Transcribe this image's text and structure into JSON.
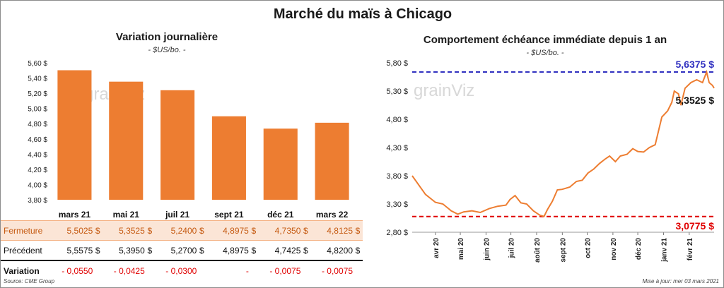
{
  "main_title": "Marché du maïs à Chicago",
  "source": "Source: CME Group",
  "updated": "Mise à jour: mer 03 mars 2021",
  "left_chart": {
    "title": "Variation  journalière",
    "subtitle": "- $US/bo. -",
    "watermark": "grainViz"
  },
  "right_chart": {
    "title": "Comportement  échéance immédiate depuis 1 an",
    "subtitle": "- $US/bo. -",
    "watermark": "grainViz",
    "annotations": {
      "max_label": "5,6375 $",
      "min_label": "3,0775 $",
      "last_label": "5,3525 $"
    }
  },
  "table": {
    "rows": [
      {
        "label": "Fermeture",
        "cells": [
          {
            "value": "5,5025",
            "cur": "$"
          },
          {
            "value": "5,3525",
            "cur": "$"
          },
          {
            "value": "5,2400",
            "cur": "$"
          },
          {
            "value": "4,8975",
            "cur": "$"
          },
          {
            "value": "4,7350",
            "cur": "$"
          },
          {
            "value": "4,8125",
            "cur": "$"
          }
        ]
      },
      {
        "label": "Précédent",
        "cells": [
          {
            "value": "5,5575",
            "cur": "$"
          },
          {
            "value": "5,3950",
            "cur": "$"
          },
          {
            "value": "5,2700",
            "cur": "$"
          },
          {
            "value": "4,8975",
            "cur": "$"
          },
          {
            "value": "4,7425",
            "cur": "$"
          },
          {
            "value": "4,8200",
            "cur": "$"
          }
        ]
      },
      {
        "label": "Variation",
        "cells": [
          {
            "value": "- 0,0550",
            "cur": ""
          },
          {
            "value": "- 0,0425",
            "cur": ""
          },
          {
            "value": "- 0,0300",
            "cur": ""
          },
          {
            "value": "-",
            "cur": ""
          },
          {
            "value": "- 0,0075",
            "cur": ""
          },
          {
            "value": "- 0,0075",
            "cur": ""
          }
        ]
      }
    ]
  },
  "chart_data": [
    {
      "type": "bar",
      "title": "Variation  journalière",
      "subtitle": "- $US/bo. -",
      "categories": [
        "mars 21",
        "mai 21",
        "juil 21",
        "sept 21",
        "déc 21",
        "mars 22"
      ],
      "values": [
        5.5025,
        5.3525,
        5.24,
        4.8975,
        4.735,
        4.8125
      ],
      "ylim": [
        3.8,
        5.6
      ],
      "yticks": [
        "3,80 $",
        "4,00 $",
        "4,20 $",
        "4,40 $",
        "4,60 $",
        "4,80 $",
        "5,00 $",
        "5,20 $",
        "5,40 $",
        "5,60 $"
      ],
      "color": "#ed7d31",
      "grid": false
    },
    {
      "type": "line",
      "title": "Comportement  échéance immédiate depuis 1 an",
      "subtitle": "- $US/bo. -",
      "color": "#ed7d31",
      "ylim": [
        2.8,
        5.8
      ],
      "yticks": [
        "2,80 $",
        "3,30 $",
        "3,80 $",
        "4,30 $",
        "4,80 $",
        "5,30 $",
        "5,80 $"
      ],
      "xticks": [
        "avr 20",
        "mai 20",
        "juin 20",
        "juil 20",
        "août 20",
        "sept 20",
        "oct 20",
        "nov 20",
        "déc 20",
        "janv 21",
        "févr 21"
      ],
      "x_start": "2020-03-04",
      "x_end": "2021-03-03",
      "max_line": 5.6375,
      "min_line": 3.0775,
      "last_value": 5.3525,
      "max_line_color": "#3030c0",
      "min_line_color": "#e00000",
      "points": [
        [
          "2020-03-04",
          3.8
        ],
        [
          "2020-03-20",
          3.47
        ],
        [
          "2020-04-01",
          3.33
        ],
        [
          "2020-04-10",
          3.3
        ],
        [
          "2020-04-20",
          3.18
        ],
        [
          "2020-04-28",
          3.12
        ],
        [
          "2020-05-05",
          3.16
        ],
        [
          "2020-05-15",
          3.18
        ],
        [
          "2020-05-25",
          3.15
        ],
        [
          "2020-06-05",
          3.22
        ],
        [
          "2020-06-15",
          3.26
        ],
        [
          "2020-06-25",
          3.28
        ],
        [
          "2020-06-30",
          3.38
        ],
        [
          "2020-07-06",
          3.45
        ],
        [
          "2020-07-13",
          3.32
        ],
        [
          "2020-07-20",
          3.3
        ],
        [
          "2020-07-28",
          3.18
        ],
        [
          "2020-08-05",
          3.1
        ],
        [
          "2020-08-10",
          3.08
        ],
        [
          "2020-08-14",
          3.2
        ],
        [
          "2020-08-20",
          3.35
        ],
        [
          "2020-08-26",
          3.55
        ],
        [
          "2020-09-01",
          3.56
        ],
        [
          "2020-09-10",
          3.6
        ],
        [
          "2020-09-18",
          3.7
        ],
        [
          "2020-09-25",
          3.72
        ],
        [
          "2020-10-02",
          3.85
        ],
        [
          "2020-10-09",
          3.92
        ],
        [
          "2020-10-16",
          4.02
        ],
        [
          "2020-10-23",
          4.1
        ],
        [
          "2020-10-28",
          4.15
        ],
        [
          "2020-11-04",
          4.05
        ],
        [
          "2020-11-10",
          4.15
        ],
        [
          "2020-11-18",
          4.18
        ],
        [
          "2020-11-25",
          4.28
        ],
        [
          "2020-12-01",
          4.23
        ],
        [
          "2020-12-08",
          4.22
        ],
        [
          "2020-12-15",
          4.3
        ],
        [
          "2020-12-22",
          4.35
        ],
        [
          "2020-12-30",
          4.84
        ],
        [
          "2021-01-06",
          4.95
        ],
        [
          "2021-01-11",
          5.1
        ],
        [
          "2021-01-14",
          5.3
        ],
        [
          "2021-01-19",
          5.25
        ],
        [
          "2021-01-22",
          5.05
        ],
        [
          "2021-01-27",
          5.35
        ],
        [
          "2021-02-03",
          5.45
        ],
        [
          "2021-02-10",
          5.5
        ],
        [
          "2021-02-17",
          5.45
        ],
        [
          "2021-02-22",
          5.6375
        ],
        [
          "2021-02-25",
          5.45
        ],
        [
          "2021-03-01",
          5.4
        ],
        [
          "2021-03-03",
          5.3525
        ]
      ]
    }
  ]
}
